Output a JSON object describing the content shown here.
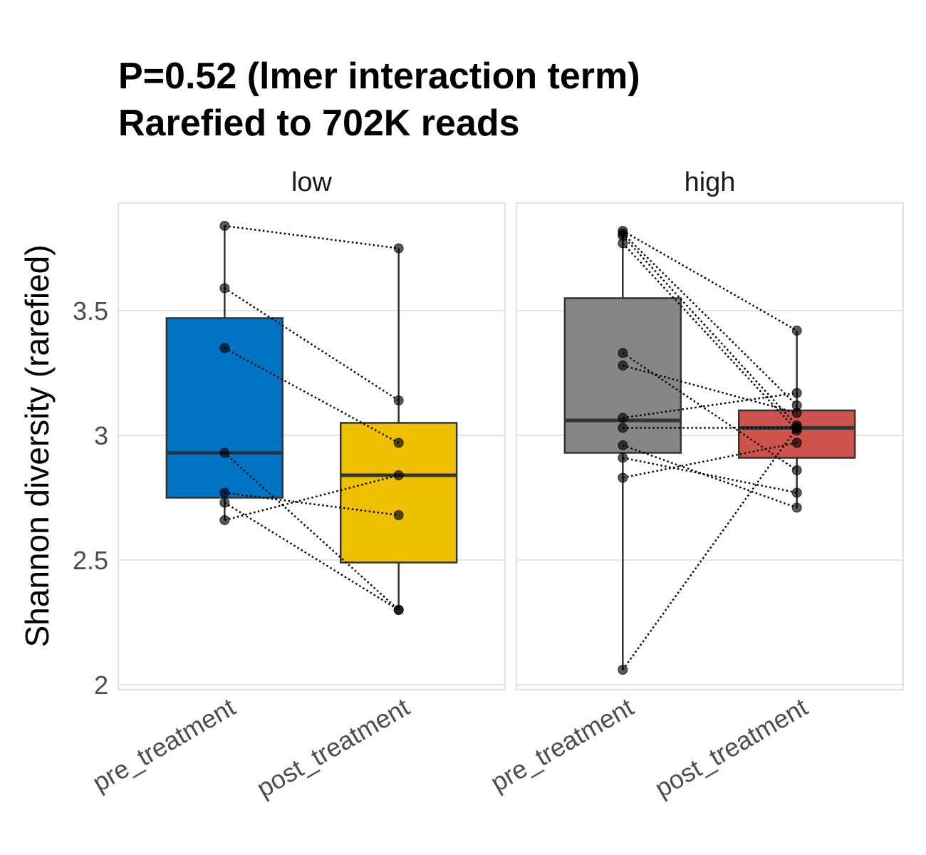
{
  "chart_data": {
    "type": "box",
    "title": [
      "P=0.52 (lmer interaction term)",
      "Rarefied to 702K reads"
    ],
    "xlabel": "",
    "ylabel": "Shannon diversity (rarefied)",
    "ylim": [
      1.98,
      3.93
    ],
    "yticks": [
      2,
      2.5,
      3,
      3.5
    ],
    "ytick_labels": [
      "2",
      "2.5",
      "3",
      "3.5"
    ],
    "grid": true,
    "categories": [
      "pre_treatment",
      "post_treatment"
    ],
    "panels": [
      {
        "label": "low",
        "groups": [
          {
            "name": "pre_treatment",
            "color": "#0073C2",
            "q1": 2.75,
            "median": 2.93,
            "q3": 3.47,
            "whisker_low": 2.66,
            "whisker_high": 3.84,
            "points": [
              3.84,
              3.59,
              3.35,
              2.93,
              2.77,
              2.73,
              2.66
            ]
          },
          {
            "name": "post_treatment",
            "color": "#EFC000",
            "q1": 2.49,
            "median": 2.84,
            "q3": 3.05,
            "whisker_low": 2.3,
            "whisker_high": 3.75,
            "points": [
              3.75,
              3.14,
              2.97,
              2.3,
              2.68,
              2.3,
              2.84
            ]
          }
        ],
        "pairs": [
          [
            3.84,
            3.75
          ],
          [
            3.59,
            3.14
          ],
          [
            3.35,
            2.97
          ],
          [
            2.93,
            2.3
          ],
          [
            2.77,
            2.68
          ],
          [
            2.73,
            2.3
          ],
          [
            2.66,
            2.84
          ]
        ]
      },
      {
        "label": "high",
        "groups": [
          {
            "name": "pre_treatment",
            "color": "#868686",
            "q1": 2.93,
            "median": 3.06,
            "q3": 3.55,
            "whisker_low": 2.06,
            "whisker_high": 3.82,
            "points": [
              3.82,
              3.81,
              3.8,
              3.77,
              3.33,
              3.28,
              3.07,
              3.03,
              2.96,
              2.91,
              2.83,
              2.06
            ]
          },
          {
            "name": "post_treatment",
            "color": "#CD534C",
            "q1": 2.91,
            "median": 3.03,
            "q3": 3.1,
            "whisker_low": 2.71,
            "whisker_high": 3.42,
            "points": [
              3.42,
              3.12,
              3.04,
              3.02,
              2.86,
              3.09,
              3.17,
              3.03,
              2.71,
              2.77,
              2.97,
              3.03
            ]
          }
        ],
        "pairs": [
          [
            3.82,
            3.42
          ],
          [
            3.81,
            3.12
          ],
          [
            3.8,
            3.04
          ],
          [
            3.77,
            3.02
          ],
          [
            3.33,
            2.86
          ],
          [
            3.28,
            3.09
          ],
          [
            3.07,
            3.17
          ],
          [
            3.03,
            3.03
          ],
          [
            2.96,
            2.71
          ],
          [
            2.91,
            2.77
          ],
          [
            2.83,
            2.97
          ],
          [
            2.06,
            3.03
          ]
        ]
      }
    ]
  }
}
